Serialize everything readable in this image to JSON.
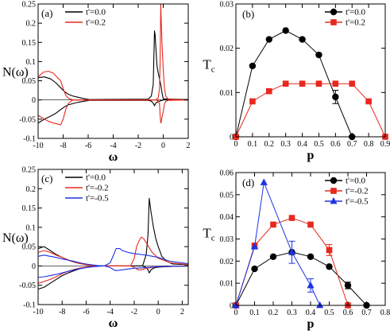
{
  "chart_data": [
    {
      "panel": "(a)",
      "type": "line",
      "xlabel": "ω",
      "ylabel": "N(ω)",
      "xlim": [
        -10,
        2
      ],
      "ylim": [
        -0.1,
        0.25
      ],
      "xticks": [
        -10,
        -8,
        -6,
        -4,
        -2,
        0,
        2
      ],
      "yticks": [
        -0.1,
        -0.05,
        0,
        0.05,
        0.1,
        0.15,
        0.2,
        0.25
      ],
      "xtick_labels": [
        "-10",
        "-8",
        "-6",
        "-4",
        "-2",
        "0",
        "2"
      ],
      "ytick_labels": [
        "-0.1",
        "-0.05",
        "0",
        "0.05",
        "0.1",
        "0.15",
        "0.2",
        "0.25"
      ],
      "legend": "top-left",
      "series": [
        {
          "name": "t'=0.0",
          "color": "#000000",
          "upper": {
            "x": [
              -10,
              -9.5,
              -9,
              -8.6,
              -8.2,
              -7.9,
              -7.6,
              -7.2,
              -6.8,
              -6.4,
              -6.1,
              -5.9,
              -1.2,
              -0.95,
              -0.8,
              -0.7,
              -0.65,
              -0.6,
              -0.5,
              -0.4,
              -0.3,
              -0.2,
              -0.1,
              0,
              2
            ],
            "y": [
              0.058,
              0.06,
              0.055,
              0.045,
              0.032,
              0.022,
              0.015,
              0.01,
              0.007,
              0.004,
              0.002,
              0.001,
              0.002,
              0.01,
              0.04,
              0.18,
              0.17,
              0.14,
              0.09,
              0.07,
              0.055,
              0.04,
              0.02,
              0.003,
              0.001
            ]
          },
          "lower": {
            "x": [
              -10,
              -9.5,
              -9,
              -8.6,
              -8.2,
              -7.9,
              -7.6,
              -7.2,
              -6.8,
              -6.4,
              -6.1,
              -5.9,
              -1.2,
              -0.95,
              -0.8,
              -0.7,
              -0.65,
              -0.6,
              -0.5,
              -0.4,
              -0.3,
              -0.2,
              -0.1,
              0,
              2
            ],
            "y": [
              -0.06,
              -0.05,
              -0.042,
              -0.035,
              -0.025,
              -0.018,
              -0.013,
              -0.009,
              -0.006,
              -0.004,
              -0.002,
              -0.001,
              -0.001,
              -0.003,
              -0.008,
              -0.015,
              -0.012,
              -0.008,
              -0.006,
              -0.004,
              -0.003,
              -0.002,
              -0.001,
              0,
              0
            ]
          }
        },
        {
          "name": "t'=0.2",
          "color": "#e8281e",
          "upper": {
            "x": [
              -10,
              -9.6,
              -9.2,
              -8.8,
              -8.5,
              -8.2,
              -8,
              -7.8,
              -7.6,
              -7.4,
              -7.2,
              -0.6,
              -0.4,
              -0.3,
              -0.25,
              -0.2,
              -0.15,
              -0.1,
              0,
              0.1,
              0.2,
              0.4,
              2
            ],
            "y": [
              0.06,
              0.072,
              0.075,
              0.07,
              0.06,
              0.05,
              0.03,
              0.012,
              0.005,
              0.002,
              0,
              0,
              0.005,
              0.03,
              0.1,
              0.25,
              0.2,
              0.15,
              0.08,
              0.03,
              0.01,
              0.002,
              0
            ]
          },
          "lower": {
            "x": [
              -10,
              -9.6,
              -9.2,
              -8.8,
              -8.5,
              -8.2,
              -8,
              -7.8,
              -7.6,
              -7.4,
              -7.2,
              -0.6,
              -0.4,
              -0.3,
              -0.25,
              -0.2,
              -0.15,
              -0.1,
              0,
              0.1,
              0.2,
              0.4,
              2
            ],
            "y": [
              -0.04,
              -0.048,
              -0.055,
              -0.06,
              -0.062,
              -0.065,
              -0.05,
              -0.025,
              -0.01,
              -0.004,
              0,
              0,
              -0.002,
              -0.01,
              -0.04,
              -0.06,
              -0.055,
              -0.045,
              -0.03,
              -0.01,
              -0.004,
              -0.001,
              0
            ]
          }
        }
      ]
    },
    {
      "panel": "(b)",
      "type": "line",
      "xlabel": "p",
      "ylabel": "T",
      "ylabel_sub": "c",
      "xlim": [
        0,
        0.9
      ],
      "ylim": [
        0,
        0.03
      ],
      "xticks": [
        0,
        0.1,
        0.2,
        0.3,
        0.4,
        0.5,
        0.6,
        0.7,
        0.8,
        0.9
      ],
      "yticks": [
        0,
        0.01,
        0.02,
        0.03
      ],
      "xtick_labels": [
        "0",
        "0.1",
        "0.2",
        "0.3",
        "0.4",
        "0.5",
        "0.6",
        "0.7",
        "0.8",
        "0.9"
      ],
      "ytick_labels": [
        "0",
        "0.01",
        "0.02",
        "0.03"
      ],
      "legend": "top-right",
      "series": [
        {
          "name": "t'=0.0",
          "color": "#000000",
          "marker": "circle",
          "x": [
            0,
            0.1,
            0.2,
            0.3,
            0.4,
            0.5,
            0.6,
            0.7
          ],
          "y": [
            0,
            0.016,
            0.022,
            0.024,
            0.022,
            0.0185,
            0.009,
            0
          ],
          "err": [
            0,
            0,
            0,
            0,
            0,
            0,
            0.0015,
            0
          ]
        },
        {
          "name": "t'=0.2",
          "color": "#e8281e",
          "marker": "square",
          "x": [
            0,
            0.1,
            0.2,
            0.3,
            0.4,
            0.5,
            0.6,
            0.7,
            0.8,
            0.9
          ],
          "y": [
            0,
            0.008,
            0.0103,
            0.012,
            0.012,
            0.012,
            0.012,
            0.012,
            0.008,
            0
          ]
        }
      ]
    },
    {
      "panel": "(c)",
      "type": "line",
      "xlabel": "ω",
      "ylabel": "N(ω)",
      "xlim": [
        -10,
        2.5
      ],
      "ylim": [
        -0.1,
        0.25
      ],
      "xticks": [
        -10,
        -8,
        -6,
        -4,
        -2,
        0,
        2
      ],
      "yticks": [
        -0.1,
        -0.05,
        0,
        0.05,
        0.1,
        0.15,
        0.2,
        0.25
      ],
      "xtick_labels": [
        "-10",
        "-8",
        "-6",
        "-4",
        "-2",
        "0",
        "2"
      ],
      "ytick_labels": [
        "-0.1",
        "-0.05",
        "0",
        "0.05",
        "0.1",
        "0.15",
        "0.2",
        "0.25"
      ],
      "legend": "top-left",
      "series": [
        {
          "name": "t'=0.0",
          "color": "#000000",
          "upper": {
            "x": [
              -10,
              -9.5,
              -9,
              -8.5,
              -8,
              -7.5,
              -7,
              -6.5,
              -6,
              -5.5,
              -5,
              -1.3,
              -1,
              -0.85,
              -0.75,
              -0.6,
              -0.4,
              -0.2,
              0,
              0.3,
              0.7,
              1.2,
              2.5
            ],
            "y": [
              0.045,
              0.05,
              0.04,
              0.03,
              0.022,
              0.015,
              0.01,
              0.006,
              0.004,
              0.002,
              0,
              0,
              0.03,
              0.08,
              0.175,
              0.14,
              0.1,
              0.07,
              0.05,
              0.025,
              0.012,
              0.005,
              0.003
            ]
          },
          "lower": {
            "x": [
              -10,
              -9.5,
              -9,
              -8.5,
              -8,
              -7.5,
              -7,
              -6.5,
              -6,
              -5.5,
              -5,
              -1.3,
              -1,
              -0.85,
              -0.75,
              -0.6,
              -0.4,
              -0.2,
              0,
              0.5,
              1.2,
              2.5
            ],
            "y": [
              -0.06,
              -0.055,
              -0.045,
              -0.035,
              -0.025,
              -0.018,
              -0.012,
              -0.007,
              -0.004,
              -0.002,
              0,
              0,
              -0.004,
              -0.01,
              -0.018,
              -0.01,
              -0.006,
              -0.004,
              -0.003,
              -0.002,
              -0.001,
              0
            ]
          }
        },
        {
          "name": "t'=-0.2",
          "color": "#e8281e",
          "upper": {
            "x": [
              -10,
              -9.5,
              -9,
              -8.5,
              -8,
              -7.5,
              -7,
              -6.5,
              -6,
              -5.5,
              -5,
              -2.3,
              -2,
              -1.8,
              -1.6,
              -1.4,
              -1.2,
              -1,
              -0.8,
              -0.5,
              0,
              1,
              2.5
            ],
            "y": [
              0.035,
              0.04,
              0.035,
              0.028,
              0.022,
              0.016,
              0.01,
              0.006,
              0.003,
              0.001,
              0,
              0,
              0.02,
              0.05,
              0.065,
              0.075,
              0.07,
              0.06,
              0.05,
              0.035,
              0.02,
              0.008,
              0.004
            ]
          },
          "lower": {
            "x": [
              -10,
              -9.5,
              -9,
              -8.5,
              -8,
              -7.5,
              -7,
              -6.5,
              -6,
              -5.5,
              -5,
              -2.3,
              -2,
              -1.8,
              -1.6,
              -1.4,
              -1.2,
              -1,
              -0.5,
              0,
              1,
              2.5
            ],
            "y": [
              -0.045,
              -0.04,
              -0.035,
              -0.028,
              -0.02,
              -0.014,
              -0.009,
              -0.005,
              -0.003,
              -0.001,
              0,
              0,
              -0.004,
              -0.008,
              -0.01,
              -0.01,
              -0.008,
              -0.006,
              -0.004,
              -0.002,
              -0.001,
              0
            ]
          }
        },
        {
          "name": "t'=-0.5",
          "color": "#1e32e6",
          "upper": {
            "x": [
              -10,
              -9.5,
              -9,
              -8.5,
              -8,
              -7.5,
              -7,
              -6.5,
              -6,
              -5.5,
              -5,
              -4.5,
              -4,
              -3.7,
              -3.5,
              -3.2,
              -3,
              -2.5,
              -2,
              -1.5,
              -1,
              0,
              1,
              2.5
            ],
            "y": [
              0.025,
              0.028,
              0.025,
              0.022,
              0.018,
              0.015,
              0.012,
              0.008,
              0.005,
              0.003,
              0.001,
              0,
              0.008,
              0.03,
              0.045,
              0.045,
              0.04,
              0.035,
              0.032,
              0.03,
              0.028,
              0.022,
              0.012,
              0.006
            ]
          },
          "lower": {
            "x": [
              -10,
              -9.5,
              -9,
              -8.5,
              -8,
              -7.5,
              -7,
              -6.5,
              -6,
              -5.5,
              -5,
              -4.5,
              -4,
              -3.7,
              -3.5,
              -3,
              -2.5,
              -2,
              -1,
              0,
              1,
              2.5
            ],
            "y": [
              -0.03,
              -0.028,
              -0.025,
              -0.022,
              -0.018,
              -0.014,
              -0.01,
              -0.007,
              -0.004,
              -0.002,
              -0.001,
              0,
              -0.004,
              -0.01,
              -0.012,
              -0.01,
              -0.008,
              -0.006,
              -0.004,
              -0.002,
              -0.001,
              0
            ]
          }
        }
      ]
    },
    {
      "panel": "(d)",
      "type": "line",
      "xlabel": "p",
      "ylabel": "T",
      "ylabel_sub": "c",
      "xlim": [
        0,
        0.8
      ],
      "ylim": [
        0,
        0.06
      ],
      "xticks": [
        0,
        0.1,
        0.2,
        0.3,
        0.4,
        0.5,
        0.6,
        0.7,
        0.8
      ],
      "yticks": [
        0,
        0.01,
        0.02,
        0.03,
        0.04,
        0.05,
        0.06
      ],
      "xtick_labels": [
        "0",
        "0.1",
        "0.2",
        "0.3",
        "0.4",
        "0.5",
        "0.6",
        "0.7",
        "0.8"
      ],
      "ytick_labels": [
        "0",
        "0.01",
        "0.02",
        "0.03",
        "0.04",
        "0.05",
        "0.06"
      ],
      "legend": "top-right",
      "series": [
        {
          "name": "t'=0.0",
          "color": "#000000",
          "marker": "circle",
          "x": [
            0,
            0.1,
            0.2,
            0.3,
            0.4,
            0.5,
            0.6,
            0.7
          ],
          "y": [
            0,
            0.0165,
            0.022,
            0.024,
            0.022,
            0.0175,
            0.009,
            0
          ],
          "err": [
            0,
            0,
            0,
            0,
            0,
            0,
            0.0015,
            0
          ]
        },
        {
          "name": "t'=-0.2",
          "color": "#e8281e",
          "marker": "square",
          "x": [
            0,
            0.1,
            0.2,
            0.3,
            0.4,
            0.5,
            0.6
          ],
          "y": [
            0,
            0.027,
            0.0365,
            0.0395,
            0.0365,
            0.025,
            0
          ],
          "err": [
            0,
            0,
            0,
            0,
            0,
            0.0025,
            0
          ]
        },
        {
          "name": "t'=-0.5",
          "color": "#1e32e6",
          "marker": "triangle",
          "x": [
            0,
            0.1,
            0.15,
            0.3,
            0.4,
            0.45
          ],
          "y": [
            0,
            0.0265,
            0.0555,
            0.024,
            0.009,
            0
          ],
          "err": [
            0,
            0,
            0,
            0.005,
            0.003,
            0
          ]
        }
      ]
    }
  ]
}
